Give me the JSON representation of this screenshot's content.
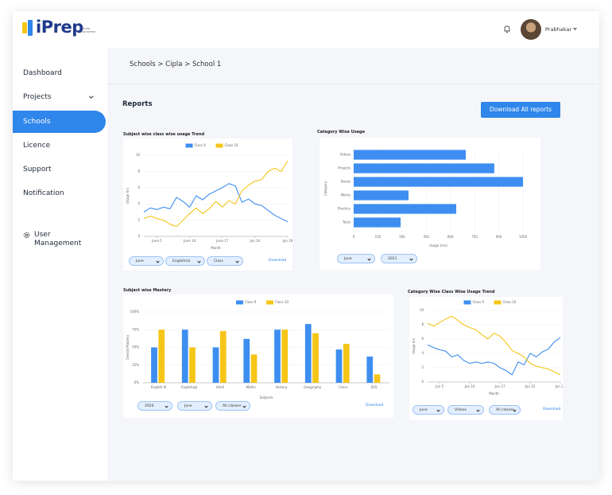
{
  "logo": {
    "name": "iPrep",
    "tagline": "LEARN ANYWHERE"
  },
  "header": {
    "user": "Prabhakar"
  },
  "sidebar": {
    "items": [
      "Dashboard",
      "Projects",
      "Schools",
      "Licence",
      "Support",
      "Notification",
      "User Management"
    ],
    "active": 2
  },
  "breadcrumb": "Schools > Cipla > School 1",
  "reports": {
    "title": "Reports",
    "download_all": "Download All reports"
  },
  "chart_data": [
    {
      "type": "line",
      "title": "Subject wise class wise usage Trend",
      "x_label": "Month",
      "y_label": "Usage hrs",
      "x": [
        1,
        2,
        3,
        4,
        5,
        6,
        7,
        8,
        9,
        10,
        11,
        12,
        13,
        14,
        15,
        16,
        17,
        18,
        19,
        20,
        21,
        22,
        23
      ],
      "xlim": [
        1,
        23
      ],
      "xticks": [
        {
          "value": 3,
          "label": "June 5"
        },
        {
          "value": 8,
          "label": "June 10"
        },
        {
          "value": 13,
          "label": "June 17"
        },
        {
          "value": 18,
          "label": "Jun 24"
        },
        {
          "value": 23,
          "label": "Jun 29"
        }
      ],
      "ylim": [
        0,
        10
      ],
      "yticks": [
        0,
        2,
        4,
        6,
        8,
        10
      ],
      "grid": true,
      "legend": "top",
      "series": [
        {
          "name": "Class 9",
          "color": "#3d8ef0",
          "values": [
            3.0,
            3.5,
            3.3,
            3.6,
            3.4,
            4.8,
            4.3,
            3.6,
            5.0,
            4.5,
            5.2,
            5.6,
            6.0,
            6.5,
            6.2,
            4.2,
            4.6,
            4.0,
            3.8,
            3.2,
            2.6,
            2.2,
            1.8
          ]
        },
        {
          "name": "Class 10",
          "color": "#f5c518",
          "values": [
            2.2,
            2.5,
            2.2,
            2.0,
            1.5,
            1.2,
            2.0,
            2.8,
            3.5,
            2.8,
            3.4,
            4.3,
            3.6,
            4.4,
            4.0,
            5.6,
            6.3,
            6.8,
            7.0,
            8.0,
            8.4,
            8.0,
            9.3
          ]
        }
      ],
      "filters": [
        "June",
        "English(a)",
        "Class"
      ],
      "download": "Download"
    },
    {
      "type": "hbar",
      "title": "Category Wise Usage",
      "x_label": "Usage (hrs)",
      "y_label": "Category",
      "categories": [
        "Videos",
        "Projects",
        "Books",
        "Works",
        "Practice",
        "Tests"
      ],
      "values": [
        695,
        872,
        1050,
        340,
        636,
        291
      ],
      "color": "#3d8ef0",
      "xlim": [
        0,
        1050
      ],
      "xticks": [
        0,
        150,
        300,
        450,
        600,
        750,
        900,
        1050
      ],
      "grid": true,
      "filters": [
        "June",
        "2021"
      ]
    },
    {
      "type": "groupbar",
      "title": "Subject wise Mastery",
      "x_label": "Subjects",
      "y_label": "Overall Mastery",
      "categories": [
        "English N",
        "English(g)",
        "Hindi",
        "Maths",
        "History",
        "Geography",
        "Civics",
        "EVS"
      ],
      "ylim": [
        0,
        100
      ],
      "yticks": [
        {
          "value": 0,
          "label": "0%"
        },
        {
          "value": 25,
          "label": "25%"
        },
        {
          "value": 50,
          "label": "50%"
        },
        {
          "value": 75,
          "label": "75%"
        },
        {
          "value": 100,
          "label": "100%"
        }
      ],
      "grid": true,
      "legend": "top",
      "series": [
        {
          "name": "Class 9",
          "color": "#3d8ef0",
          "values": [
            50,
            75,
            50,
            62,
            75,
            83,
            47,
            37
          ]
        },
        {
          "name": "Class 10",
          "color": "#f5c518",
          "values": [
            75,
            50,
            73,
            40,
            75,
            70,
            55,
            12
          ]
        }
      ],
      "filters": [
        "2020",
        "June",
        "All classes"
      ],
      "download": "Download"
    },
    {
      "type": "line",
      "title": "Category Wise Class Wise Usage Trend",
      "x_label": "Month",
      "y_label": "Usage hrs",
      "x": [
        1,
        2,
        3,
        4,
        5,
        6,
        7,
        8,
        9,
        10,
        11,
        12,
        13,
        14,
        15,
        16,
        17,
        18,
        19,
        20,
        21,
        22,
        23
      ],
      "xlim": [
        1,
        23
      ],
      "xticks": [
        {
          "value": 3,
          "label": "Jun 5"
        },
        {
          "value": 8,
          "label": "Jun 10"
        },
        {
          "value": 13,
          "label": "Jun 17"
        },
        {
          "value": 18,
          "label": "Jun 22"
        },
        {
          "value": 23,
          "label": "Jun 29"
        }
      ],
      "ylim": [
        0,
        10
      ],
      "yticks": [
        0,
        2,
        4,
        6,
        8,
        10
      ],
      "grid": true,
      "legend": "top",
      "series": [
        {
          "name": "Class 9",
          "color": "#3d8ef0",
          "values": [
            5.2,
            4.8,
            4.5,
            4.3,
            3.5,
            3.8,
            3.0,
            2.6,
            2.8,
            2.6,
            2.8,
            2.6,
            2.0,
            1.6,
            1.0,
            2.8,
            2.4,
            4.0,
            3.5,
            4.2,
            4.6,
            5.6,
            6.2
          ]
        },
        {
          "name": "Class 10",
          "color": "#f5c518",
          "values": [
            8.2,
            7.8,
            8.3,
            8.8,
            9.2,
            8.6,
            8.0,
            7.6,
            7.3,
            6.6,
            6.0,
            6.8,
            6.4,
            5.5,
            4.4,
            4.0,
            3.5,
            2.6,
            2.2,
            2.0,
            1.8,
            1.4,
            1.0
          ]
        }
      ],
      "filters": [
        "June",
        "Videos",
        "All classes"
      ],
      "download": "Download"
    }
  ]
}
